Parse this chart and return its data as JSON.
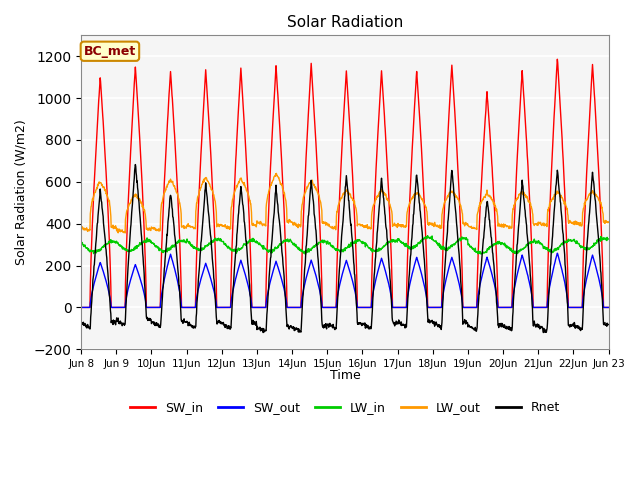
{
  "title": "Solar Radiation",
  "ylabel": "Solar Radiation (W/m2)",
  "xlabel": "Time",
  "ylim": [
    -200,
    1300
  ],
  "yticks": [
    -200,
    0,
    200,
    400,
    600,
    800,
    1000,
    1200
  ],
  "n_days": 15,
  "dt": 0.25,
  "SW_in_peak": [
    1100,
    1150,
    1130,
    1130,
    1140,
    1150,
    1160,
    1130,
    1130,
    1130,
    1160,
    1030,
    1130,
    1190,
    1160
  ],
  "SW_out_peak": [
    215,
    205,
    255,
    210,
    225,
    220,
    225,
    225,
    235,
    240,
    240,
    240,
    250,
    260,
    250
  ],
  "LW_in_base": [
    290,
    295,
    295,
    300,
    295,
    295,
    290,
    295,
    295,
    310,
    305,
    285,
    290,
    295,
    305
  ],
  "LW_out_base": [
    375,
    365,
    375,
    385,
    385,
    400,
    395,
    385,
    385,
    390,
    390,
    382,
    388,
    398,
    400
  ],
  "LW_out_peak": [
    600,
    540,
    610,
    620,
    615,
    635,
    605,
    560,
    560,
    550,
    558,
    545,
    555,
    550,
    555
  ],
  "colors": {
    "SW_in": "#ff0000",
    "SW_out": "#0000ff",
    "LW_in": "#00cc00",
    "LW_out": "#ff9900",
    "Rnet": "#000000"
  },
  "legend_station": "BC_met",
  "plot_bg_color": "#f5f5f5"
}
